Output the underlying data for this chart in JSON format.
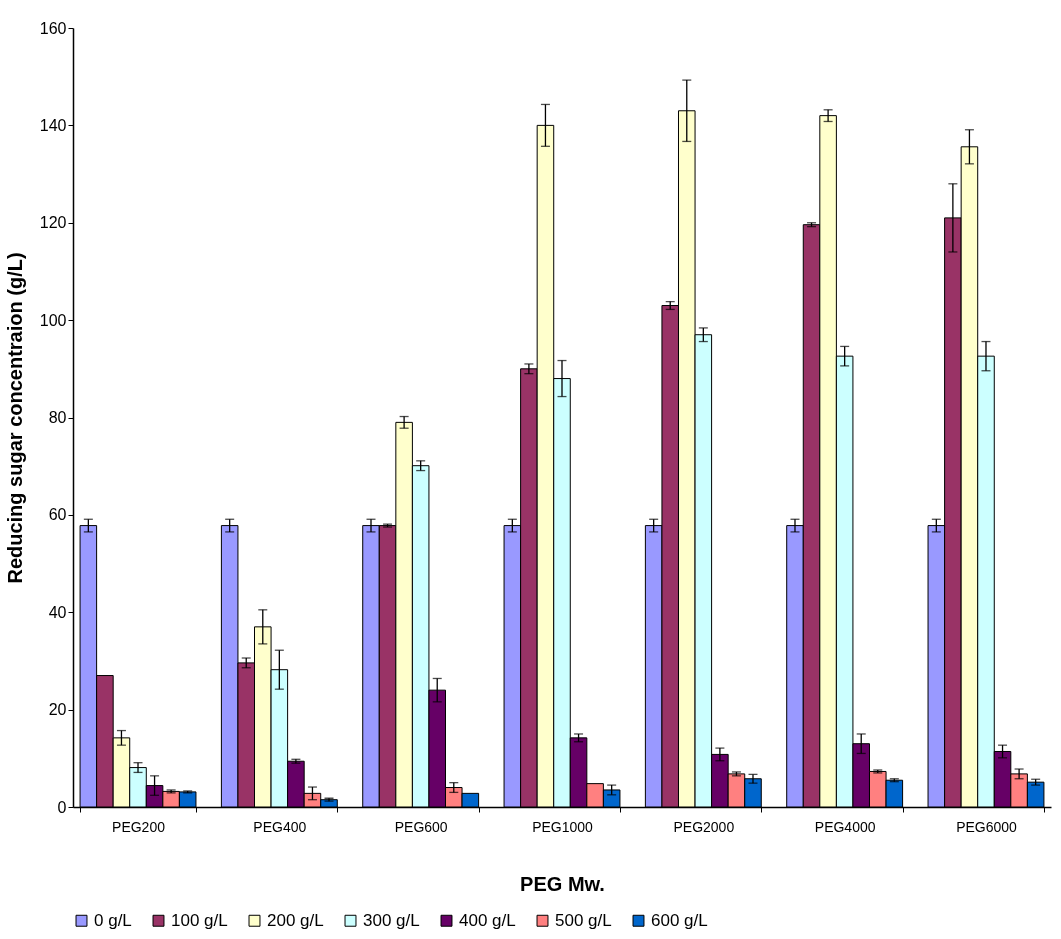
{
  "chart_data": {
    "type": "bar",
    "xlabel": "PEG Mw.",
    "ylabel": "Reducing sugar concentraion (g/L)",
    "categories": [
      "PEG200",
      "PEG400",
      "PEG600",
      "PEG1000",
      "PEG2000",
      "PEG4000",
      "PEG6000"
    ],
    "series": [
      {
        "name": "0 g/L",
        "color": "#9999ff",
        "values": [
          57.8,
          57.8,
          57.8,
          57.8,
          57.8,
          57.8,
          57.8
        ],
        "errors": [
          1.3,
          1.3,
          1.3,
          1.3,
          1.3,
          1.3,
          1.3
        ]
      },
      {
        "name": "100 g/L",
        "color": "#993366",
        "values": [
          27,
          29.6,
          57.8,
          90,
          103,
          119.6,
          121
        ],
        "errors": [
          null,
          1,
          0.3,
          1,
          0.8,
          0.4,
          7
        ]
      },
      {
        "name": "200 g/L",
        "color": "#ffffcc",
        "values": [
          14.2,
          37,
          79,
          140,
          143,
          142,
          135.6
        ],
        "errors": [
          1.5,
          3.5,
          1.2,
          4.3,
          6.3,
          1.2,
          3.5
        ]
      },
      {
        "name": "300 g/L",
        "color": "#ccffff",
        "values": [
          8.1,
          28.2,
          70.1,
          88,
          97,
          92.6,
          92.6
        ],
        "errors": [
          1,
          4,
          1,
          3.7,
          1.4,
          2,
          3
        ]
      },
      {
        "name": "400 g/L",
        "color": "#660066",
        "values": [
          4.4,
          9.4,
          24,
          14.2,
          10.8,
          13,
          11.4
        ],
        "errors": [
          2,
          0.4,
          2.4,
          0.8,
          1.3,
          2,
          1.3
        ]
      },
      {
        "name": "500 g/L",
        "color": "#ff8080",
        "values": [
          3.2,
          2.8,
          4,
          4.8,
          6.8,
          7.3,
          6.8
        ],
        "errors": [
          0.3,
          1.3,
          1,
          null,
          0.4,
          0.3,
          1
        ]
      },
      {
        "name": "600 g/L",
        "color": "#0066cc",
        "values": [
          3.1,
          1.5,
          2.8,
          3.5,
          5.8,
          5.5,
          5.1
        ],
        "errors": [
          0.2,
          0.3,
          null,
          1,
          0.9,
          0.3,
          0.6
        ]
      }
    ],
    "ylim": [
      0,
      160
    ],
    "yticks": [
      0,
      20,
      40,
      60,
      80,
      100,
      120,
      140,
      160
    ],
    "grid": false,
    "legend": "bottom"
  }
}
